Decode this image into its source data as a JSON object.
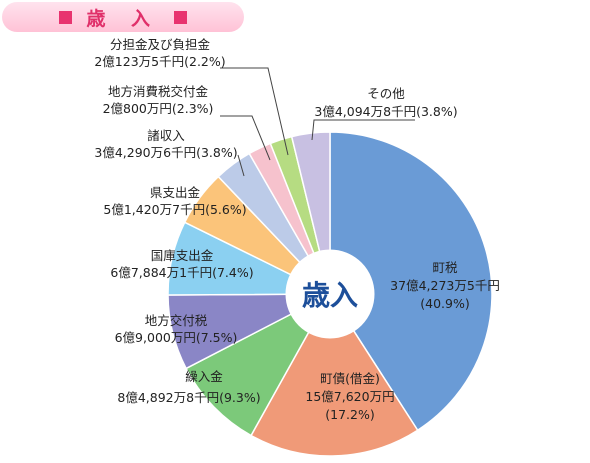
{
  "header": {
    "title": "歳 入"
  },
  "chart_data": {
    "type": "pie",
    "title": "歳入",
    "unit": "万円",
    "slices": [
      {
        "key": "choze",
        "name": "町税",
        "amount": "37億4,273万5千円",
        "percent": 40.9,
        "percent_label": "(40.9%)",
        "color": "#6a9bd6"
      },
      {
        "key": "chosai",
        "name": "町債(借金)",
        "amount": "15億7,620万円",
        "percent": 17.2,
        "percent_label": "(17.2%)",
        "color": "#f09a78"
      },
      {
        "key": "kurikoshi",
        "name": "繰入金",
        "amount": "8億4,892万8千円",
        "percent": 9.3,
        "percent_label": "(9.3%)",
        "color": "#7cc97a"
      },
      {
        "key": "chihoukofu",
        "name": "地方交付税",
        "amount": "6億9,000万円",
        "percent": 7.5,
        "percent_label": "(7.5%)",
        "color": "#8a86c6"
      },
      {
        "key": "kokko",
        "name": "国庫支出金",
        "amount": "6億7,884万1千円",
        "percent": 7.4,
        "percent_label": "(7.4%)",
        "color": "#8bd0f1"
      },
      {
        "key": "kenshishutsu",
        "name": "県支出金",
        "amount": "5億1,420万7千円",
        "percent": 5.6,
        "percent_label": "(5.6%)",
        "color": "#fbc47a"
      },
      {
        "key": "shoshuunyuu",
        "name": "諸収入",
        "amount": "3億4,290万6千円",
        "percent": 3.8,
        "percent_label": "(3.8%)",
        "color": "#bccbe8"
      },
      {
        "key": "chihoushouhi",
        "name": "地方消費税交付金",
        "amount": "2億800万円",
        "percent": 2.3,
        "percent_label": "(2.3%)",
        "color": "#f6c2cd"
      },
      {
        "key": "buntan",
        "name": "分担金及び負担金",
        "amount": "2億123万5千円",
        "percent": 2.2,
        "percent_label": "(2.2%)",
        "color": "#b6dc82"
      },
      {
        "key": "sonota",
        "name": "その他",
        "amount": "3億4,094万8千円",
        "percent": 3.8,
        "percent_label": "(3.8%)",
        "color": "#c8c0e2"
      }
    ]
  }
}
